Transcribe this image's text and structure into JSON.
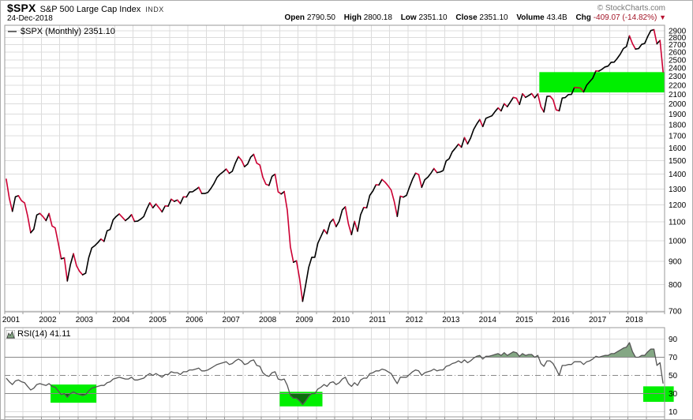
{
  "header": {
    "symbol": "$SPX",
    "name": "S&P 500 Large Cap Index",
    "exchange": "INDX",
    "date": "24-Dec-2018",
    "copyright": "© StockCharts.com",
    "quote": {
      "open_label": "Open",
      "open": "2790.50",
      "high_label": "High",
      "high": "2800.18",
      "low_label": "Low",
      "low": "2351.10",
      "close_label": "Close",
      "close": "2351.10",
      "volume_label": "Volume",
      "volume": "43.4B",
      "chg_label": "Chg",
      "chg": "-409.07 (-14.82%)",
      "chg_arrow": "▼",
      "chg_direction": "down"
    }
  },
  "price_panel": {
    "legend_marker": "—",
    "legend_text": "$SPX (Monthly) 2351.10"
  },
  "rsi_panel": {
    "legend_text": "RSI(14) 41.11"
  },
  "colors": {
    "up_line": "#000000",
    "down_line": "#cc0033",
    "highlight_green": "#00ef00",
    "rsi_line": "#555555",
    "overbought_fill": "#84a784",
    "oversold_fill": "#0b6e0b",
    "grid": "#dcdcdc",
    "axis": "#999999",
    "negative_text": "#a31527"
  },
  "chart_data": [
    {
      "type": "line",
      "name": "$SPX (Monthly)",
      "x_start": "2001-01",
      "interval": "monthly",
      "scale": "log",
      "ylim": [
        697,
        2980
      ],
      "y_ticks": [
        700,
        800,
        900,
        1000,
        1100,
        1200,
        1300,
        1400,
        1500,
        1600,
        1700,
        1800,
        1900,
        2000,
        2100,
        2200,
        2300,
        2400,
        2500,
        2600,
        2700,
        2800,
        2900
      ],
      "x_tick_years": [
        2001,
        2002,
        2003,
        2004,
        2005,
        2006,
        2007,
        2008,
        2009,
        2010,
        2011,
        2012,
        2013,
        2014,
        2015,
        2016,
        2017,
        2018
      ],
      "up_color": "#000000",
      "down_color": "#cc0033",
      "values": [
        1366,
        1240,
        1160,
        1249,
        1256,
        1224,
        1211,
        1134,
        1041,
        1060,
        1139,
        1148,
        1130,
        1107,
        1147,
        1077,
        1067,
        990,
        912,
        916,
        815,
        886,
        936,
        880,
        856,
        841,
        848,
        917,
        964,
        975,
        990,
        1008,
        996,
        1051,
        1058,
        1112,
        1131,
        1145,
        1126,
        1107,
        1121,
        1141,
        1102,
        1104,
        1115,
        1130,
        1174,
        1212,
        1181,
        1204,
        1181,
        1157,
        1192,
        1191,
        1234,
        1220,
        1229,
        1207,
        1249,
        1248,
        1280,
        1281,
        1295,
        1311,
        1270,
        1270,
        1277,
        1304,
        1336,
        1378,
        1401,
        1418,
        1438,
        1407,
        1421,
        1482,
        1531,
        1503,
        1455,
        1474,
        1527,
        1549,
        1481,
        1468,
        1379,
        1331,
        1323,
        1386,
        1400,
        1280,
        1267,
        1283,
        1166,
        969,
        896,
        903,
        826,
        735,
        798,
        873,
        919,
        919,
        987,
        1021,
        1057,
        1036,
        1096,
        1115,
        1074,
        1104,
        1169,
        1187,
        1089,
        1031,
        1102,
        1049,
        1141,
        1183,
        1181,
        1258,
        1286,
        1327,
        1326,
        1364,
        1345,
        1321,
        1292,
        1219,
        1131,
        1253,
        1247,
        1258,
        1312,
        1366,
        1408,
        1398,
        1310,
        1362,
        1379,
        1407,
        1441,
        1412,
        1416,
        1426,
        1498,
        1515,
        1569,
        1598,
        1631,
        1606,
        1686,
        1633,
        1682,
        1757,
        1806,
        1848,
        1783,
        1859,
        1872,
        1884,
        1924,
        1960,
        1931,
        2003,
        1972,
        2018,
        2068,
        2059,
        1995,
        2105,
        2068,
        2086,
        2107,
        2063,
        2104,
        1972,
        1920,
        2079,
        2080,
        2044,
        1940,
        1932,
        2060,
        2065,
        2097,
        2099,
        2174,
        2171,
        2168,
        2126,
        2199,
        2239,
        2279,
        2364,
        2363,
        2384,
        2412,
        2423,
        2470,
        2472,
        2519,
        2575,
        2648,
        2674,
        2824,
        2714,
        2641,
        2648,
        2705,
        2718,
        2816,
        2902,
        2914,
        2712,
        2760,
        2351
      ],
      "annotations": [
        {
          "type": "rect",
          "x0": "2015-08",
          "x1": "2019-01",
          "y0": 2120,
          "y1": 2350,
          "color": "#00ef00"
        }
      ]
    },
    {
      "type": "line",
      "name": "RSI(14)",
      "x_start": "2001-01",
      "interval": "monthly",
      "ylim": [
        4.5,
        102.5
      ],
      "y_ticks": [
        10,
        30,
        50,
        70,
        90
      ],
      "overbought": 70,
      "oversold": 30,
      "midline": 50,
      "line_color": "#555555",
      "overbought_fill": "#84a784",
      "oversold_fill": "#0b6e0b",
      "last_value": 41.11,
      "values": [
        47,
        43,
        40,
        44,
        45,
        43,
        42,
        38,
        34,
        36,
        40,
        41,
        40,
        39,
        41,
        38,
        37,
        33,
        29,
        30,
        26,
        30,
        32,
        30,
        29,
        28,
        29,
        33,
        36,
        37,
        38,
        39,
        39,
        42,
        43,
        46,
        47,
        48,
        47,
        46,
        46,
        48,
        45,
        45,
        46,
        47,
        50,
        52,
        50,
        52,
        50,
        48,
        51,
        51,
        54,
        53,
        53,
        51,
        54,
        54,
        56,
        56,
        57,
        58,
        55,
        55,
        56,
        58,
        60,
        62,
        63,
        64,
        65,
        62,
        63,
        66,
        68,
        66,
        62,
        63,
        66,
        67,
        61,
        60,
        53,
        50,
        49,
        53,
        54,
        46,
        45,
        46,
        39,
        28,
        25,
        25,
        22,
        18,
        22,
        27,
        30,
        30,
        35,
        37,
        40,
        38,
        42,
        43,
        40,
        42,
        46,
        48,
        41,
        38,
        42,
        39,
        45,
        47,
        47,
        52,
        53,
        55,
        55,
        57,
        56,
        54,
        52,
        46,
        41,
        48,
        48,
        48,
        51,
        54,
        56,
        55,
        50,
        53,
        54,
        55,
        57,
        55,
        56,
        56,
        60,
        61,
        63,
        64,
        66,
        64,
        67,
        64,
        66,
        69,
        71,
        72,
        68,
        71,
        71,
        72,
        73,
        74,
        72,
        75,
        72,
        74,
        76,
        75,
        71,
        74,
        72,
        73,
        73,
        70,
        72,
        63,
        60,
        66,
        66,
        63,
        57,
        50,
        61,
        61,
        62,
        62,
        65,
        65,
        65,
        62,
        65,
        66,
        68,
        71,
        70,
        71,
        72,
        72,
        74,
        74,
        76,
        78,
        80,
        81,
        86,
        76,
        70,
        70,
        72,
        72,
        76,
        79,
        79,
        61,
        64,
        41.11
      ],
      "annotations": [
        {
          "type": "rect",
          "x0": "2002-04",
          "x1": "2003-07",
          "y0": 20,
          "y1": 40,
          "color": "#00ef00"
        },
        {
          "type": "rect",
          "x0": "2008-07",
          "x1": "2009-09",
          "y0": 16,
          "y1": 32,
          "color": "#00ef00"
        },
        {
          "type": "rect",
          "x0": "2018-06",
          "x1": "2019-04",
          "y0": 21,
          "y1": 38,
          "color": "#00ef00"
        }
      ]
    }
  ]
}
